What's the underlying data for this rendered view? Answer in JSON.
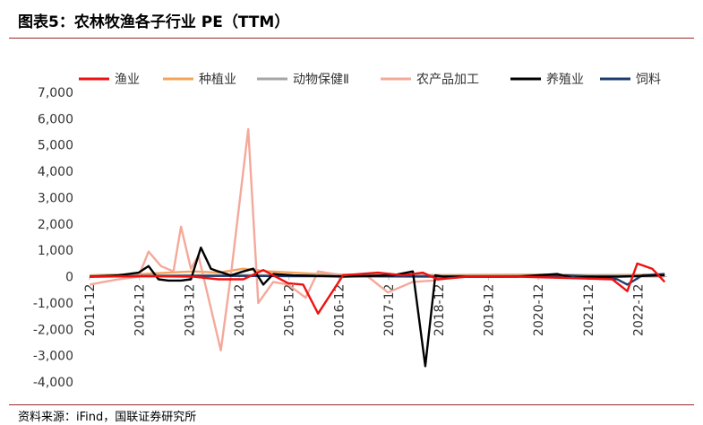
{
  "figure": {
    "title": "图表5：农林牧渔各子行业 PE（TTM）",
    "source": "资料来源：iFind，国联证券研究所"
  },
  "chart_data": {
    "type": "line",
    "title": "",
    "xlabel": "",
    "ylabel": "",
    "ylim": [
      -4000,
      7000
    ],
    "yticks": [
      -4000,
      -3000,
      -2000,
      -1000,
      0,
      1000,
      2000,
      3000,
      4000,
      5000,
      6000,
      7000
    ],
    "ytick_labels": [
      "-4,000",
      "-3,000",
      "-2,000",
      "-1,000",
      "0",
      "1,000",
      "2,000",
      "3,000",
      "4,000",
      "5,000",
      "6,000",
      "7,000"
    ],
    "xlim": [
      2011.917,
      2023.5
    ],
    "xtick_labels": [
      "2011-12",
      "2012-12",
      "2013-12",
      "2014-12",
      "2015-12",
      "2016-12",
      "2017-12",
      "2018-12",
      "2019-12",
      "2020-12",
      "2021-12",
      "2022-12"
    ],
    "xtick_values": [
      2011.917,
      2012.917,
      2013.917,
      2014.917,
      2015.917,
      2016.917,
      2017.917,
      2018.917,
      2019.917,
      2020.917,
      2021.917,
      2022.917
    ],
    "legend_position": "top",
    "series": [
      {
        "name": "渔业",
        "color": "#ee1111",
        "x": [
          2011.92,
          2013.0,
          2014.0,
          2014.5,
          2015.0,
          2015.4,
          2015.9,
          2016.2,
          2016.5,
          2017.0,
          2017.7,
          2018.2,
          2018.6,
          2018.9,
          2019.5,
          2020.5,
          2021.5,
          2022.4,
          2022.7,
          2022.9,
          2023.2,
          2023.45
        ],
        "y": [
          0,
          20,
          0,
          -100,
          -100,
          250,
          -250,
          -300,
          -1400,
          50,
          150,
          50,
          150,
          -100,
          0,
          0,
          -50,
          -100,
          -550,
          500,
          300,
          -200
        ]
      },
      {
        "name": "种植业",
        "color": "#f5a45a",
        "x": [
          2011.92,
          2012.5,
          2013.0,
          2013.5,
          2014.0,
          2014.5,
          2015.0,
          2015.5,
          2016.0,
          2016.5,
          2017.0,
          2018.0,
          2019.0,
          2020.0,
          2021.0,
          2022.0,
          2023.0,
          2023.45
        ],
        "y": [
          50,
          80,
          100,
          150,
          200,
          150,
          300,
          200,
          150,
          100,
          80,
          70,
          60,
          70,
          80,
          60,
          70,
          60
        ]
      },
      {
        "name": "动物保健Ⅱ",
        "color": "#a6a6a6",
        "x": [
          2011.92,
          2013.0,
          2014.0,
          2015.0,
          2016.0,
          2017.0,
          2018.0,
          2019.0,
          2020.0,
          2021.0,
          2022.0,
          2023.0,
          2023.45
        ],
        "y": [
          30,
          40,
          50,
          60,
          50,
          40,
          50,
          40,
          30,
          40,
          50,
          40,
          30
        ]
      },
      {
        "name": "农产品加工",
        "color": "#f4a99a",
        "x": [
          2011.92,
          2012.2,
          2012.5,
          2012.9,
          2013.1,
          2013.35,
          2013.6,
          2013.75,
          2013.95,
          2014.1,
          2014.3,
          2014.55,
          2014.75,
          2015.1,
          2015.3,
          2015.6,
          2015.9,
          2016.25,
          2016.5,
          2017.0,
          2017.5,
          2017.9,
          2018.4,
          2018.8,
          2019.3,
          2020.0,
          2021.0,
          2022.0,
          2023.0,
          2023.45
        ],
        "y": [
          -300,
          -200,
          -100,
          0,
          950,
          400,
          200,
          1900,
          300,
          800,
          -800,
          -2800,
          50,
          5600,
          -1000,
          -200,
          -300,
          -800,
          200,
          50,
          0,
          -600,
          -200,
          -150,
          0,
          0,
          0,
          0,
          0,
          0
        ]
      },
      {
        "name": "养殖业",
        "color": "#000000",
        "x": [
          2011.92,
          2012.5,
          2012.9,
          2013.1,
          2013.3,
          2013.5,
          2013.75,
          2013.95,
          2014.15,
          2014.35,
          2014.5,
          2014.75,
          2015.0,
          2015.2,
          2015.4,
          2015.6,
          2016.0,
          2017.0,
          2018.0,
          2018.4,
          2018.65,
          2018.85,
          2019.0,
          2019.5,
          2020.5,
          2021.3,
          2021.6,
          2022.0,
          2022.5,
          2023.45
        ],
        "y": [
          0,
          50,
          150,
          400,
          -100,
          -150,
          -150,
          -100,
          1100,
          300,
          200,
          50,
          200,
          300,
          -300,
          100,
          50,
          0,
          50,
          200,
          -3400,
          50,
          0,
          0,
          0,
          100,
          -50,
          0,
          0,
          50
        ]
      },
      {
        "name": "饲料",
        "color": "#1f3a6e",
        "x": [
          2011.92,
          2013.0,
          2014.0,
          2015.0,
          2016.0,
          2017.0,
          2018.0,
          2019.0,
          2020.0,
          2021.0,
          2021.5,
          2022.0,
          2022.5,
          2022.7,
          2023.0,
          2023.45
        ],
        "y": [
          0,
          20,
          30,
          30,
          20,
          20,
          10,
          0,
          0,
          20,
          50,
          0,
          -100,
          -300,
          50,
          100
        ]
      }
    ]
  }
}
